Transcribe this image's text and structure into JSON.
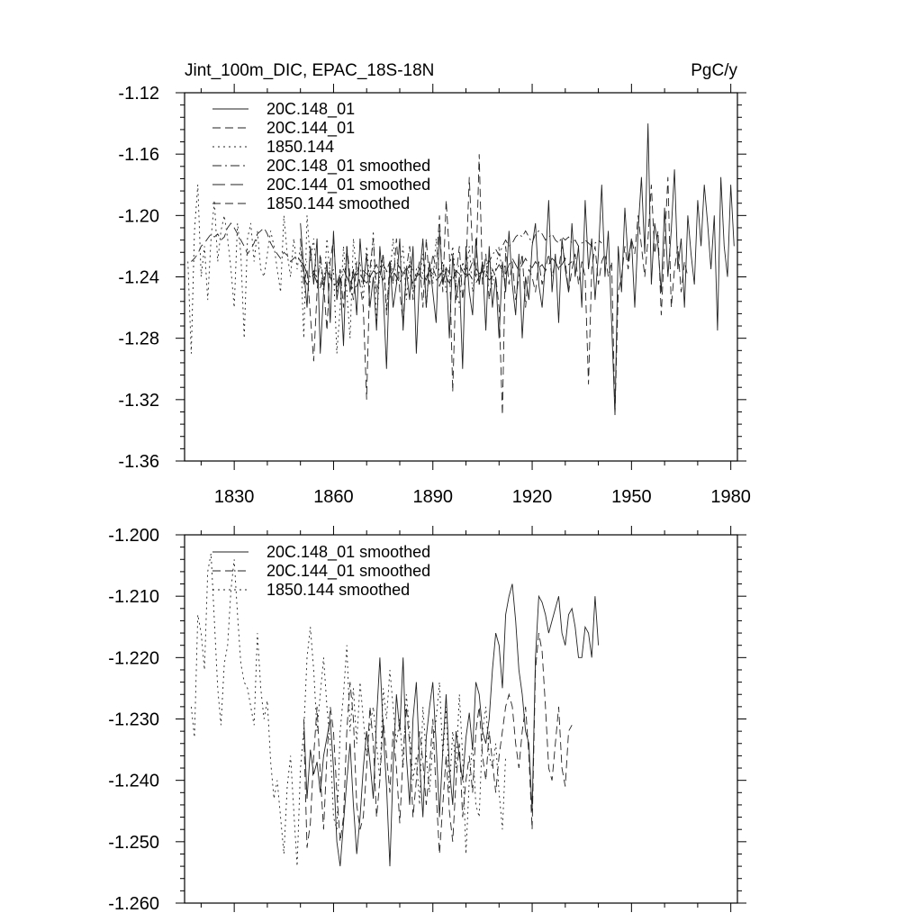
{
  "chart_data": [
    {
      "type": "line",
      "title": "Jint_100m_DIC, EPAC_18S-18N",
      "units": "PgC/y",
      "xlim": [
        1815,
        1982
      ],
      "ylim": [
        -1.36,
        -1.12
      ],
      "yticks": [
        -1.12,
        -1.16,
        -1.2,
        -1.24,
        -1.28,
        -1.32,
        -1.36
      ],
      "ytick_labels": [
        "-1.12",
        "-1.16",
        "-1.20",
        "-1.24",
        "-1.28",
        "-1.32",
        "-1.36"
      ],
      "xticks": [
        1830,
        1860,
        1890,
        1920,
        1950,
        1980
      ],
      "xtick_labels": [
        "1830",
        "1860",
        "1890",
        "1920",
        "1950",
        "1980"
      ],
      "legend": [
        "20C.148_01",
        "20C.144_01",
        "1850.144",
        "20C.148_01 smoothed",
        "20C.144_01 smoothed",
        "1850.144 smoothed"
      ],
      "series": [
        {
          "name": "20C.148_01",
          "style": "solid",
          "x_start": 1850,
          "values": [
            -1.205,
            -1.235,
            -1.26,
            -1.22,
            -1.245,
            -1.215,
            -1.29,
            -1.25,
            -1.23,
            -1.27,
            -1.21,
            -1.255,
            -1.24,
            -1.285,
            -1.22,
            -1.25,
            -1.235,
            -1.265,
            -1.215,
            -1.245,
            -1.225,
            -1.26,
            -1.24,
            -1.275,
            -1.22,
            -1.25,
            -1.3,
            -1.23,
            -1.26,
            -1.245,
            -1.215,
            -1.275,
            -1.235,
            -1.255,
            -1.22,
            -1.29,
            -1.24,
            -1.215,
            -1.26,
            -1.23,
            -1.25,
            -1.27,
            -1.21,
            -1.245,
            -1.235,
            -1.28,
            -1.225,
            -1.255,
            -1.24,
            -1.3,
            -1.22,
            -1.25,
            -1.265,
            -1.215,
            -1.245,
            -1.23,
            -1.275,
            -1.22,
            -1.26,
            -1.24,
            -1.28,
            -1.23,
            -1.25,
            -1.21,
            -1.245,
            -1.265,
            -1.225,
            -1.28,
            -1.24,
            -1.255,
            -1.22,
            -1.205,
            -1.245,
            -1.26,
            -1.23,
            -1.19,
            -1.25,
            -1.225,
            -1.27,
            -1.215,
            -1.235,
            -1.25,
            -1.205,
            -1.24,
            -1.22,
            -1.26,
            -1.19,
            -1.235,
            -1.215,
            -1.255,
            -1.225,
            -1.18,
            -1.24,
            -1.21,
            -1.27,
            -1.33,
            -1.22,
            -1.25,
            -1.195,
            -1.23,
            -1.215,
            -1.26,
            -1.21,
            -1.175,
            -1.225,
            -1.14,
            -1.245,
            -1.205,
            -1.22,
            -1.25,
            -1.195,
            -1.24,
            -1.21,
            -1.17,
            -1.235,
            -1.215,
            -1.26,
            -1.2,
            -1.225,
            -1.245,
            -1.19,
            -1.22,
            -1.18,
            -1.205,
            -1.235,
            -1.2,
            -1.275,
            -1.175,
            -1.22,
            -1.24,
            -1.18,
            -1.22
          ]
        },
        {
          "name": "20C.144_01",
          "style": "dashed",
          "x_start": 1850,
          "values": [
            -1.215,
            -1.245,
            -1.235,
            -1.265,
            -1.295,
            -1.25,
            -1.225,
            -1.245,
            -1.275,
            -1.23,
            -1.215,
            -1.25,
            -1.235,
            -1.26,
            -1.22,
            -1.24,
            -1.255,
            -1.23,
            -1.245,
            -1.26,
            -1.32,
            -1.235,
            -1.215,
            -1.25,
            -1.24,
            -1.225,
            -1.265,
            -1.23,
            -1.245,
            -1.215,
            -1.25,
            -1.27,
            -1.235,
            -1.22,
            -1.255,
            -1.24,
            -1.23,
            -1.26,
            -1.215,
            -1.245,
            -1.225,
            -1.235,
            -1.2,
            -1.25,
            -1.19,
            -1.225,
            -1.315,
            -1.24,
            -1.22,
            -1.255,
            -1.235,
            -1.175,
            -1.225,
            -1.24,
            -1.16,
            -1.245,
            -1.225,
            -1.255,
            -1.235,
            -1.24,
            -1.26,
            -1.33,
            -1.22,
            -1.245,
            -1.23,
            -1.255,
            -1.24,
            -1.225,
            -1.26,
            -1.235,
            -1.24,
            -1.25,
            -1.23,
            -1.245,
            -1.235,
            -1.225,
            -1.24,
            -1.23,
            -1.235,
            -1.22,
            -1.23,
            -1.25,
            -1.235,
            -1.225,
            -1.245,
            -1.23,
            -1.24,
            -1.31,
            -1.235,
            -1.22,
            -1.245,
            -1.23,
            -1.225,
            -1.24,
            -1.23,
            -1.33,
            -1.25,
            -1.24,
            -1.22,
            -1.235,
            -1.215,
            -1.225,
            -1.2,
            -1.22,
            -1.24,
            -1.215,
            -1.18,
            -1.225,
            -1.21,
            -1.265,
            -1.22,
            -1.175,
            -1.26,
            -1.235,
            -1.22,
            -1.25,
            -1.23,
            -1.24
          ]
        },
        {
          "name": "1850.144",
          "style": "dotted",
          "x_start": 1816,
          "values": [
            -1.23,
            -1.29,
            -1.21,
            -1.18,
            -1.24,
            -1.22,
            -1.255,
            -1.215,
            -1.19,
            -1.23,
            -1.21,
            -1.2,
            -1.215,
            -1.235,
            -1.26,
            -1.205,
            -1.225,
            -1.28,
            -1.215,
            -1.205,
            -1.23,
            -1.21,
            -1.235,
            -1.24,
            -1.225,
            -1.21,
            -1.22,
            -1.235,
            -1.25,
            -1.2,
            -1.225,
            -1.24,
            -1.215,
            -1.235,
            -1.22,
            -1.28,
            -1.2,
            -1.23,
            -1.215,
            -1.245,
            -1.23,
            -1.25,
            -1.215,
            -1.24,
            -1.235,
            -1.29,
            -1.26,
            -1.22,
            -1.25,
            -1.28,
            -1.215,
            -1.24,
            -1.23,
            -1.255,
            -1.22,
            -1.245,
            -1.21,
            -1.27,
            -1.235,
            -1.225,
            -1.26,
            -1.24,
            -1.215,
            -1.245,
            -1.235,
            -1.22,
            -1.255,
            -1.23,
            -1.25,
            -1.235,
            -1.24,
            -1.225,
            -1.26,
            -1.23,
            -1.245,
            -1.215,
            -1.24,
            -1.23,
            -1.25,
            -1.235,
            -1.22,
            -1.245,
            -1.26,
            -1.23,
            -1.24,
            -1.22,
            -1.25,
            -1.235,
            -1.245,
            -1.23,
            -1.24,
            -1.225,
            -1.245,
            -1.235,
            -1.22,
            -1.24,
            -1.23
          ]
        },
        {
          "name": "20C.148_01 smoothed",
          "style": "dashdot",
          "x_start": 1851,
          "values": [
            -1.232,
            -1.238,
            -1.24,
            -1.236,
            -1.242,
            -1.245,
            -1.24,
            -1.236,
            -1.24,
            -1.244,
            -1.247,
            -1.242,
            -1.238,
            -1.24,
            -1.245,
            -1.248,
            -1.246,
            -1.24,
            -1.236,
            -1.238,
            -1.24,
            -1.236,
            -1.232,
            -1.238,
            -1.242,
            -1.236,
            -1.23,
            -1.236,
            -1.24,
            -1.244,
            -1.238,
            -1.234,
            -1.238,
            -1.244,
            -1.24,
            -1.234,
            -1.238,
            -1.242,
            -1.236,
            -1.234,
            -1.24,
            -1.246,
            -1.24,
            -1.234,
            -1.238,
            -1.242,
            -1.236,
            -1.232,
            -1.236,
            -1.24,
            -1.236,
            -1.23,
            -1.234,
            -1.238,
            -1.236,
            -1.232,
            -1.23,
            -1.226,
            -1.222,
            -1.226,
            -1.22,
            -1.216,
            -1.22,
            -1.218,
            -1.214,
            -1.212,
            -1.214,
            -1.21,
            -1.214,
            -1.218,
            -1.212,
            -1.21,
            -1.212,
            -1.216,
            -1.214,
            -1.212,
            -1.216,
            -1.218,
            -1.214,
            -1.216,
            -1.214,
            -1.218,
            -1.216,
            -1.22,
            -1.218,
            -1.216,
            -1.218,
            -1.22,
            -1.218,
            -1.216,
            -1.218
          ]
        },
        {
          "name": "20C.144_01 smoothed",
          "style": "longdash",
          "x_start": 1851,
          "values": [
            -1.24,
            -1.245,
            -1.242,
            -1.238,
            -1.244,
            -1.247,
            -1.242,
            -1.236,
            -1.24,
            -1.246,
            -1.244,
            -1.238,
            -1.235,
            -1.24,
            -1.244,
            -1.24,
            -1.236,
            -1.238,
            -1.242,
            -1.244,
            -1.24,
            -1.236,
            -1.238,
            -1.236,
            -1.232,
            -1.236,
            -1.24,
            -1.236,
            -1.23,
            -1.234,
            -1.238,
            -1.236,
            -1.232,
            -1.236,
            -1.24,
            -1.238,
            -1.242,
            -1.24,
            -1.236,
            -1.238,
            -1.242,
            -1.24,
            -1.236,
            -1.24,
            -1.244,
            -1.24,
            -1.236,
            -1.238,
            -1.242,
            -1.24,
            -1.238,
            -1.242,
            -1.244,
            -1.24,
            -1.236,
            -1.238,
            -1.242,
            -1.24,
            -1.236,
            -1.232,
            -1.236,
            -1.238,
            -1.232,
            -1.228,
            -1.232,
            -1.236,
            -1.232,
            -1.228,
            -1.232,
            -1.234,
            -1.23,
            -1.234,
            -1.232,
            -1.236,
            -1.232,
            -1.228,
            -1.23,
            -1.234,
            -1.232,
            -1.228,
            -1.232,
            -1.23
          ]
        },
        {
          "name": "1850.144 smoothed",
          "style": "dashed",
          "x_start": 1817,
          "values": [
            -1.23,
            -1.228,
            -1.225,
            -1.22,
            -1.218,
            -1.215,
            -1.212,
            -1.214,
            -1.212,
            -1.216,
            -1.214,
            -1.208,
            -1.205,
            -1.208,
            -1.212,
            -1.216,
            -1.22,
            -1.225,
            -1.222,
            -1.218,
            -1.212,
            -1.21,
            -1.208,
            -1.212,
            -1.218,
            -1.222,
            -1.225,
            -1.228,
            -1.224,
            -1.226,
            -1.23,
            -1.228,
            -1.226,
            -1.23,
            -1.232,
            -1.23
          ]
        }
      ]
    },
    {
      "type": "line",
      "title": "",
      "xlim": [
        1815,
        1982
      ],
      "ylim": [
        -1.26,
        -1.2
      ],
      "yticks": [
        -1.2,
        -1.21,
        -1.22,
        -1.23,
        -1.24,
        -1.25,
        -1.26
      ],
      "ytick_labels": [
        "-1.200",
        "-1.210",
        "-1.220",
        "-1.230",
        "-1.240",
        "-1.250",
        "-1.260"
      ],
      "xticks": [
        1830,
        1860,
        1890,
        1920,
        1950,
        1980
      ],
      "xtick_labels": [],
      "legend": [
        "20C.148_01 smoothed",
        "20C.144_01 smoothed",
        "1850.144 smoothed"
      ],
      "series": [
        {
          "name": "20C.148_01 smoothed",
          "style": "solid",
          "x_start": 1851,
          "values": [
            -1.23,
            -1.243,
            -1.235,
            -1.239,
            -1.237,
            -1.242,
            -1.236,
            -1.233,
            -1.23,
            -1.238,
            -1.25,
            -1.254,
            -1.247,
            -1.24,
            -1.234,
            -1.244,
            -1.252,
            -1.246,
            -1.238,
            -1.232,
            -1.237,
            -1.243,
            -1.23,
            -1.22,
            -1.232,
            -1.241,
            -1.254,
            -1.238,
            -1.226,
            -1.232,
            -1.22,
            -1.236,
            -1.244,
            -1.23,
            -1.224,
            -1.237,
            -1.246,
            -1.233,
            -1.228,
            -1.224,
            -1.234,
            -1.246,
            -1.235,
            -1.226,
            -1.238,
            -1.244,
            -1.232,
            -1.236,
            -1.24,
            -1.233,
            -1.229,
            -1.235,
            -1.224,
            -1.226,
            -1.232,
            -1.234,
            -1.23,
            -1.222,
            -1.216,
            -1.218,
            -1.225,
            -1.213,
            -1.21,
            -1.208,
            -1.214,
            -1.222,
            -1.226,
            -1.232,
            -1.234,
            -1.245,
            -1.22,
            -1.21,
            -1.211,
            -1.213,
            -1.216,
            -1.214,
            -1.212,
            -1.21,
            -1.216,
            -1.218,
            -1.213,
            -1.212,
            -1.215,
            -1.22,
            -1.22,
            -1.215,
            -1.216,
            -1.22,
            -1.21,
            -1.218
          ]
        },
        {
          "name": "20C.144_01 smoothed",
          "style": "dashed",
          "x_start": 1851,
          "values": [
            -1.232,
            -1.251,
            -1.247,
            -1.236,
            -1.228,
            -1.239,
            -1.248,
            -1.236,
            -1.228,
            -1.232,
            -1.242,
            -1.25,
            -1.246,
            -1.232,
            -1.224,
            -1.23,
            -1.244,
            -1.248,
            -1.246,
            -1.238,
            -1.228,
            -1.234,
            -1.246,
            -1.24,
            -1.23,
            -1.236,
            -1.242,
            -1.232,
            -1.238,
            -1.247,
            -1.236,
            -1.228,
            -1.234,
            -1.246,
            -1.24,
            -1.232,
            -1.237,
            -1.244,
            -1.238,
            -1.23,
            -1.242,
            -1.252,
            -1.244,
            -1.236,
            -1.245,
            -1.25,
            -1.24,
            -1.234,
            -1.246,
            -1.24,
            -1.236,
            -1.242,
            -1.232,
            -1.228,
            -1.236,
            -1.24,
            -1.232,
            -1.237,
            -1.242,
            -1.236,
            -1.232,
            -1.228,
            -1.226,
            -1.228,
            -1.234,
            -1.238,
            -1.232,
            -1.228,
            -1.236,
            -1.248,
            -1.222,
            -1.216,
            -1.219,
            -1.228,
            -1.238,
            -1.24,
            -1.234,
            -1.228,
            -1.238,
            -1.241,
            -1.232,
            -1.231
          ]
        },
        {
          "name": "1850.144 smoothed",
          "style": "dotted",
          "x_start": 1817,
          "values": [
            -1.228,
            -1.233,
            -1.213,
            -1.216,
            -1.222,
            -1.206,
            -1.203,
            -1.214,
            -1.225,
            -1.231,
            -1.221,
            -1.218,
            -1.209,
            -1.204,
            -1.213,
            -1.221,
            -1.224,
            -1.225,
            -1.228,
            -1.231,
            -1.216,
            -1.225,
            -1.23,
            -1.227,
            -1.237,
            -1.243,
            -1.24,
            -1.246,
            -1.252,
            -1.241,
            -1.236,
            -1.245,
            -1.254,
            -1.238,
            -1.232,
            -1.22,
            -1.215,
            -1.222,
            -1.232,
            -1.226,
            -1.22,
            -1.228,
            -1.234,
            -1.246,
            -1.248,
            -1.232,
            -1.226,
            -1.218,
            -1.232,
            -1.225,
            -1.234,
            -1.224,
            -1.23,
            -1.236,
            -1.231,
            -1.228,
            -1.234,
            -1.24,
            -1.225,
            -1.23,
            -1.222,
            -1.228,
            -1.234,
            -1.23,
            -1.238,
            -1.226,
            -1.232,
            -1.24,
            -1.236,
            -1.244,
            -1.228,
            -1.236,
            -1.242,
            -1.234,
            -1.23,
            -1.224,
            -1.236,
            -1.228,
            -1.242,
            -1.232,
            -1.238,
            -1.226,
            -1.236,
            -1.252,
            -1.24,
            -1.234,
            -1.244,
            -1.246,
            -1.232,
            -1.228,
            -1.236,
            -1.238,
            -1.234,
            -1.242,
            -1.248,
            -1.236
          ]
        }
      ]
    }
  ]
}
